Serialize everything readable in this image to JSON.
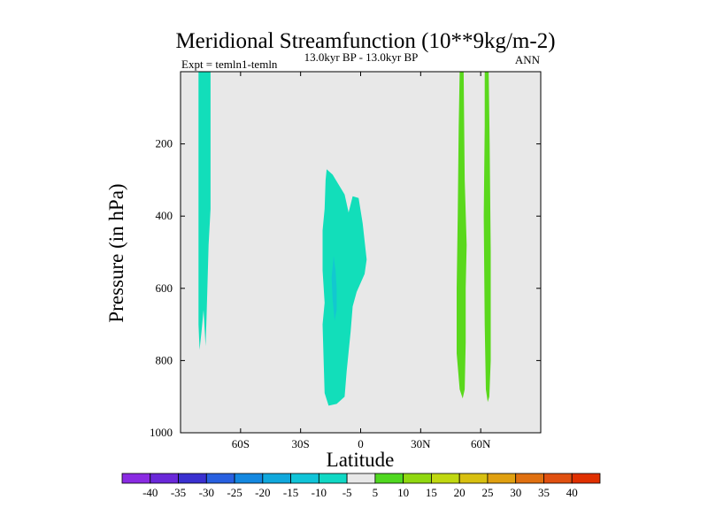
{
  "chart_data": {
    "type": "heatmap",
    "title": "Meridional Streamfunction (10**9kg/m-2)",
    "subtitle_left": "Expt = temln1-temln",
    "subtitle_center": "13.0kyr BP - 13.0kyr BP",
    "subtitle_right": "ANN",
    "xlabel": "Latitude",
    "ylabel": "Pressure (in hPa)",
    "xlim": [
      -90,
      90
    ],
    "ylim": [
      1000,
      0
    ],
    "x_ticks": [
      -60,
      -30,
      0,
      30,
      60
    ],
    "x_tick_labels": [
      "60S",
      "30S",
      "0",
      "30N",
      "60N"
    ],
    "y_ticks": [
      200,
      400,
      600,
      800,
      1000
    ],
    "y_tick_labels": [
      "200",
      "400",
      "600",
      "800",
      "1000"
    ],
    "background_color": "#e8e8e8",
    "colorbar": {
      "levels": [
        -40,
        -35,
        -30,
        -25,
        -20,
        -15,
        -10,
        -5,
        5,
        10,
        15,
        20,
        25,
        30,
        35,
        40
      ],
      "labels": [
        "-40",
        "-35",
        "-30",
        "-25",
        "-20",
        "-15",
        "-10",
        "-5",
        "5",
        "10",
        "15",
        "20",
        "25",
        "30",
        "35",
        "40"
      ],
      "colors": [
        "#8a2be2",
        "#6a28d9",
        "#3a30d0",
        "#2860e0",
        "#1488e0",
        "#10a8dc",
        "#10c4d8",
        "#10d8c4",
        "#e8e8e8",
        "#50d820",
        "#90d810",
        "#c0d810",
        "#d8c010",
        "#e0a010",
        "#e07010",
        "#e05010",
        "#e03000"
      ]
    },
    "regions": [
      {
        "name": "neg-band-southern-high-latitude",
        "class": "-10 to -5",
        "color": "#12deba",
        "polygon": [
          [
            -81,
            0
          ],
          [
            -75,
            0
          ],
          [
            -75,
            380
          ],
          [
            -76,
            480
          ],
          [
            -77,
            680
          ],
          [
            -77.5,
            760
          ],
          [
            -78.5,
            660
          ],
          [
            -79.5,
            720
          ],
          [
            -80.5,
            770
          ],
          [
            -81,
            700
          ],
          [
            -81,
            400
          ]
        ]
      },
      {
        "name": "neg-cell-southern-tropics",
        "class": "-10 to -5",
        "color": "#12deba",
        "polygon": [
          [
            -17,
            270
          ],
          [
            -14,
            285
          ],
          [
            -8,
            340
          ],
          [
            -6,
            390
          ],
          [
            -4,
            345
          ],
          [
            -1,
            350
          ],
          [
            1,
            420
          ],
          [
            3,
            520
          ],
          [
            2,
            560
          ],
          [
            -2,
            610
          ],
          [
            -4,
            650
          ],
          [
            -5,
            720
          ],
          [
            -7,
            830
          ],
          [
            -8,
            900
          ],
          [
            -12,
            920
          ],
          [
            -16,
            925
          ],
          [
            -18,
            890
          ],
          [
            -18.5,
            800
          ],
          [
            -19,
            700
          ],
          [
            -18,
            640
          ],
          [
            -19,
            550
          ],
          [
            -19,
            440
          ],
          [
            -18,
            380
          ],
          [
            -17.5,
            300
          ]
        ]
      },
      {
        "name": "neg-core-southern-tropics",
        "class": "-15 to -10",
        "color": "#12c8d0",
        "polygon": [
          [
            -13.5,
            510
          ],
          [
            -12.5,
            550
          ],
          [
            -12,
            600
          ],
          [
            -12,
            660
          ],
          [
            -13,
            690
          ],
          [
            -14,
            630
          ],
          [
            -14.5,
            570
          ]
        ]
      },
      {
        "name": "pos-band-northern-50",
        "class": "5 to 10",
        "color": "#5ad81c",
        "polygon": [
          [
            49.5,
            0
          ],
          [
            51.5,
            0
          ],
          [
            52,
            300
          ],
          [
            53,
            480
          ],
          [
            52.5,
            600
          ],
          [
            52.5,
            750
          ],
          [
            52,
            880
          ],
          [
            51,
            905
          ],
          [
            49.5,
            880
          ],
          [
            48,
            780
          ],
          [
            48,
            600
          ],
          [
            48.5,
            400
          ],
          [
            49,
            150
          ]
        ]
      },
      {
        "name": "pos-band-northern-63",
        "class": "5 to 10",
        "color": "#5ad81c",
        "polygon": [
          [
            62,
            0
          ],
          [
            64,
            0
          ],
          [
            64.5,
            200
          ],
          [
            65,
            500
          ],
          [
            65,
            800
          ],
          [
            64.3,
            900
          ],
          [
            63.5,
            915
          ],
          [
            62.6,
            880
          ],
          [
            62,
            700
          ],
          [
            61.5,
            400
          ],
          [
            62,
            150
          ]
        ]
      }
    ]
  }
}
